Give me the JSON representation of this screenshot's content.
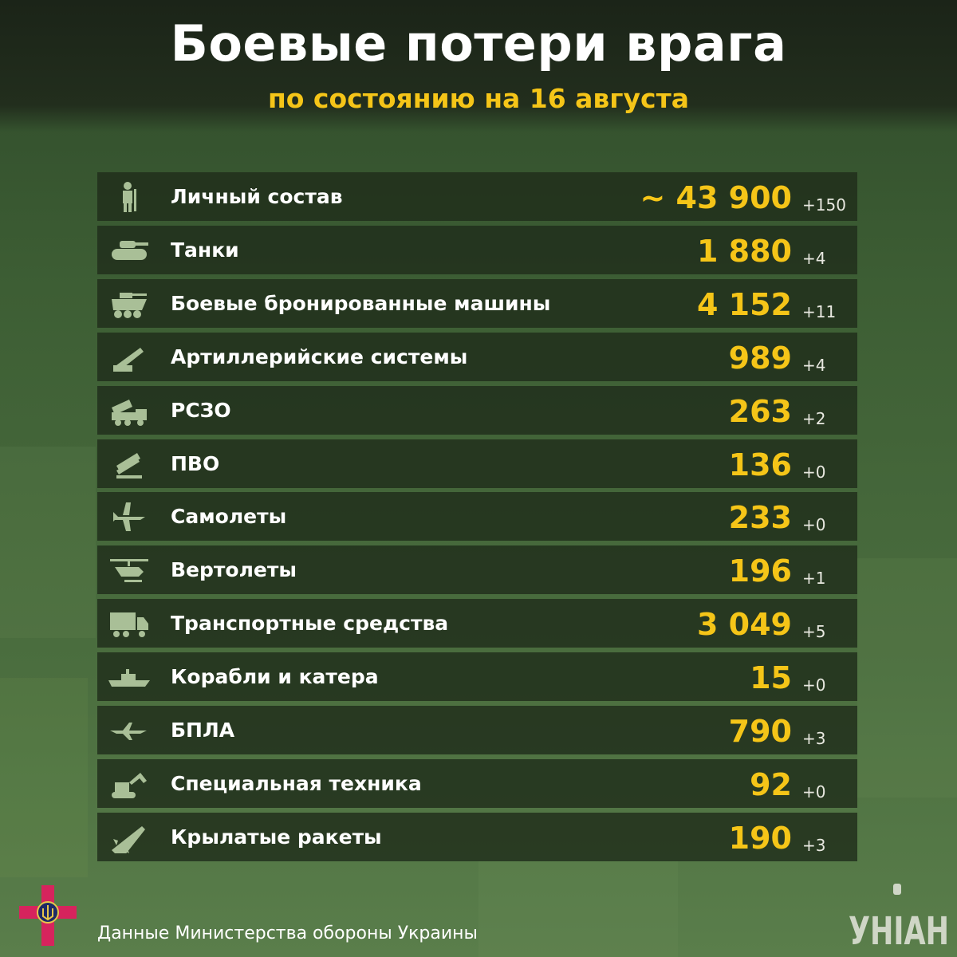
{
  "header": {
    "title": "Боевые потери врага",
    "subtitle": "по состоянию на 16 августа"
  },
  "colors": {
    "accent": "#f5c518",
    "row_bg": "#202d1b",
    "text": "#ffffff",
    "icon": "#a9bf97"
  },
  "rows": [
    {
      "icon": "soldier-icon",
      "label": "Личный состав",
      "value": "~ 43 900",
      "delta": "+150"
    },
    {
      "icon": "tank-icon",
      "label": "Танки",
      "value": "1 880",
      "delta": "+4"
    },
    {
      "icon": "armored-vehicle-icon",
      "label": "Боевые бронированные машины",
      "value": "4 152",
      "delta": "+11"
    },
    {
      "icon": "artillery-icon",
      "label": "Артиллерийские системы",
      "value": "989",
      "delta": "+4"
    },
    {
      "icon": "mlrs-icon",
      "label": "РСЗО",
      "value": "263",
      "delta": "+2"
    },
    {
      "icon": "air-defense-icon",
      "label": "ПВО",
      "value": "136",
      "delta": "+0"
    },
    {
      "icon": "jet-icon",
      "label": "Самолеты",
      "value": "233",
      "delta": "+0"
    },
    {
      "icon": "helicopter-icon",
      "label": "Вертолеты",
      "value": "196",
      "delta": "+1"
    },
    {
      "icon": "truck-icon",
      "label": "Транспортные средства",
      "value": "3 049",
      "delta": "+5"
    },
    {
      "icon": "ship-icon",
      "label": "Корабли и катера",
      "value": "15",
      "delta": "+0"
    },
    {
      "icon": "drone-icon",
      "label": "БПЛА",
      "value": "790",
      "delta": "+3"
    },
    {
      "icon": "excavator-icon",
      "label": "Специальная техника",
      "value": "92",
      "delta": "+0"
    },
    {
      "icon": "missile-icon",
      "label": "Крылатые ракеты",
      "value": "190",
      "delta": "+3"
    }
  ],
  "footer": {
    "source": "Данные Министерства обороны Украины",
    "logo": "УНІАН"
  }
}
